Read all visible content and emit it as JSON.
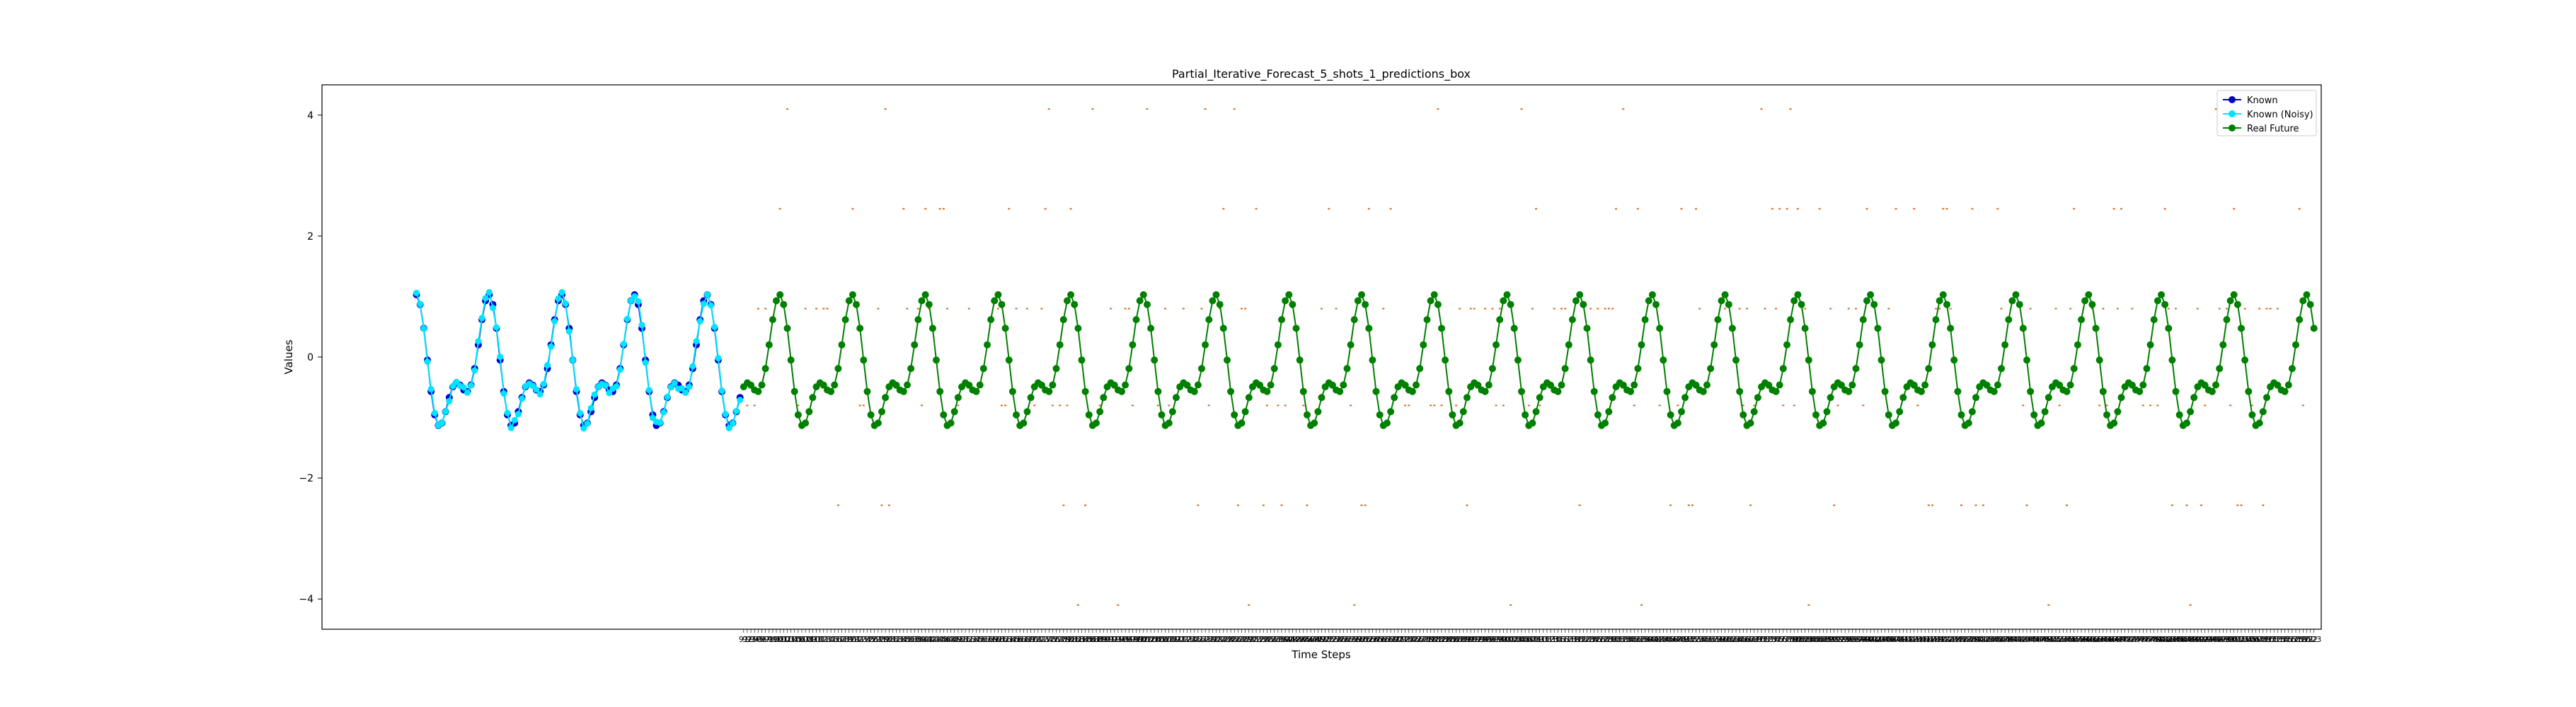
{
  "chart_data": {
    "type": "line",
    "title": "Partial_Iterative_Forecast_5_shots_1_predictions_box",
    "xlabel": "Time Steps",
    "ylabel": "Values",
    "xlim": [
      -25,
      525
    ],
    "ylim": [
      -4.5,
      4.5
    ],
    "yticks": [
      -4,
      -2,
      0,
      2,
      4
    ],
    "grid": false,
    "legend": "top-right",
    "series": [
      {
        "name": "Known",
        "color": "#0000cc",
        "marker": "o",
        "x_start": 1,
        "x_end": 90,
        "generator": "0.8*cos(2*pi*t/20)+0.35*sin(2*pi*t/10)+0.35*cos(2*pi*t/10)-0.22"
      },
      {
        "name": "Known (Noisy)",
        "color": "#00e5ff",
        "marker": "o",
        "x_start": 1,
        "x_end": 90,
        "generator": "Known + small noise"
      },
      {
        "name": "Real Future",
        "color": "#008000",
        "marker": "o",
        "x_start": 91,
        "x_end": 523,
        "generator": "0.8*cos(2*pi*t/20)+0.35*sin(2*pi*t/10)+0.35*cos(2*pi*t/10)-0.22"
      }
    ],
    "predictions_box": {
      "color": "#d2691e",
      "levels": [
        4.1,
        2.45,
        0.8,
        -0.8,
        -2.45,
        -4.1
      ],
      "x_start": 92,
      "x_end": 520
    },
    "x_tick_range": [
      91,
      523
    ]
  }
}
